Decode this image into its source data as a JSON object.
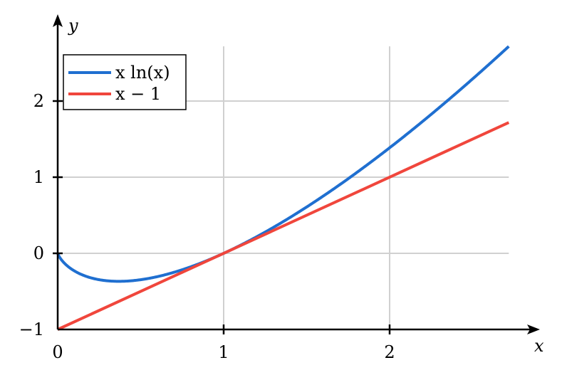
{
  "chart_data": {
    "type": "line",
    "xlabel": "x",
    "ylabel": "y",
    "xlim": [
      0,
      2.718
    ],
    "ylim": [
      -1,
      2.718
    ],
    "xticks": [
      0,
      1,
      2
    ],
    "yticks": [
      -1,
      0,
      1,
      2
    ],
    "xtick_labels": [
      "0",
      "1",
      "2"
    ],
    "ytick_labels": [
      "−1",
      "0",
      "1",
      "2"
    ],
    "grid": true,
    "legend_position": "top-left",
    "series": [
      {
        "name": "x ln(x)",
        "color": "#1f6fd0",
        "x": [
          0.0,
          0.01,
          0.05,
          0.1,
          0.2,
          0.3,
          0.368,
          0.5,
          0.7,
          1.0,
          1.3,
          1.5,
          1.8,
          2.0,
          2.3,
          2.5,
          2.718
        ],
        "y": [
          0.0,
          -0.046,
          -0.15,
          -0.23,
          -0.322,
          -0.361,
          -0.368,
          -0.347,
          -0.25,
          0.0,
          0.341,
          0.608,
          1.058,
          1.386,
          1.916,
          2.291,
          2.718
        ]
      },
      {
        "name": "x − 1",
        "color": "#f0463c",
        "x": [
          0.0,
          2.718
        ],
        "y": [
          -1.0,
          1.718
        ]
      }
    ]
  }
}
